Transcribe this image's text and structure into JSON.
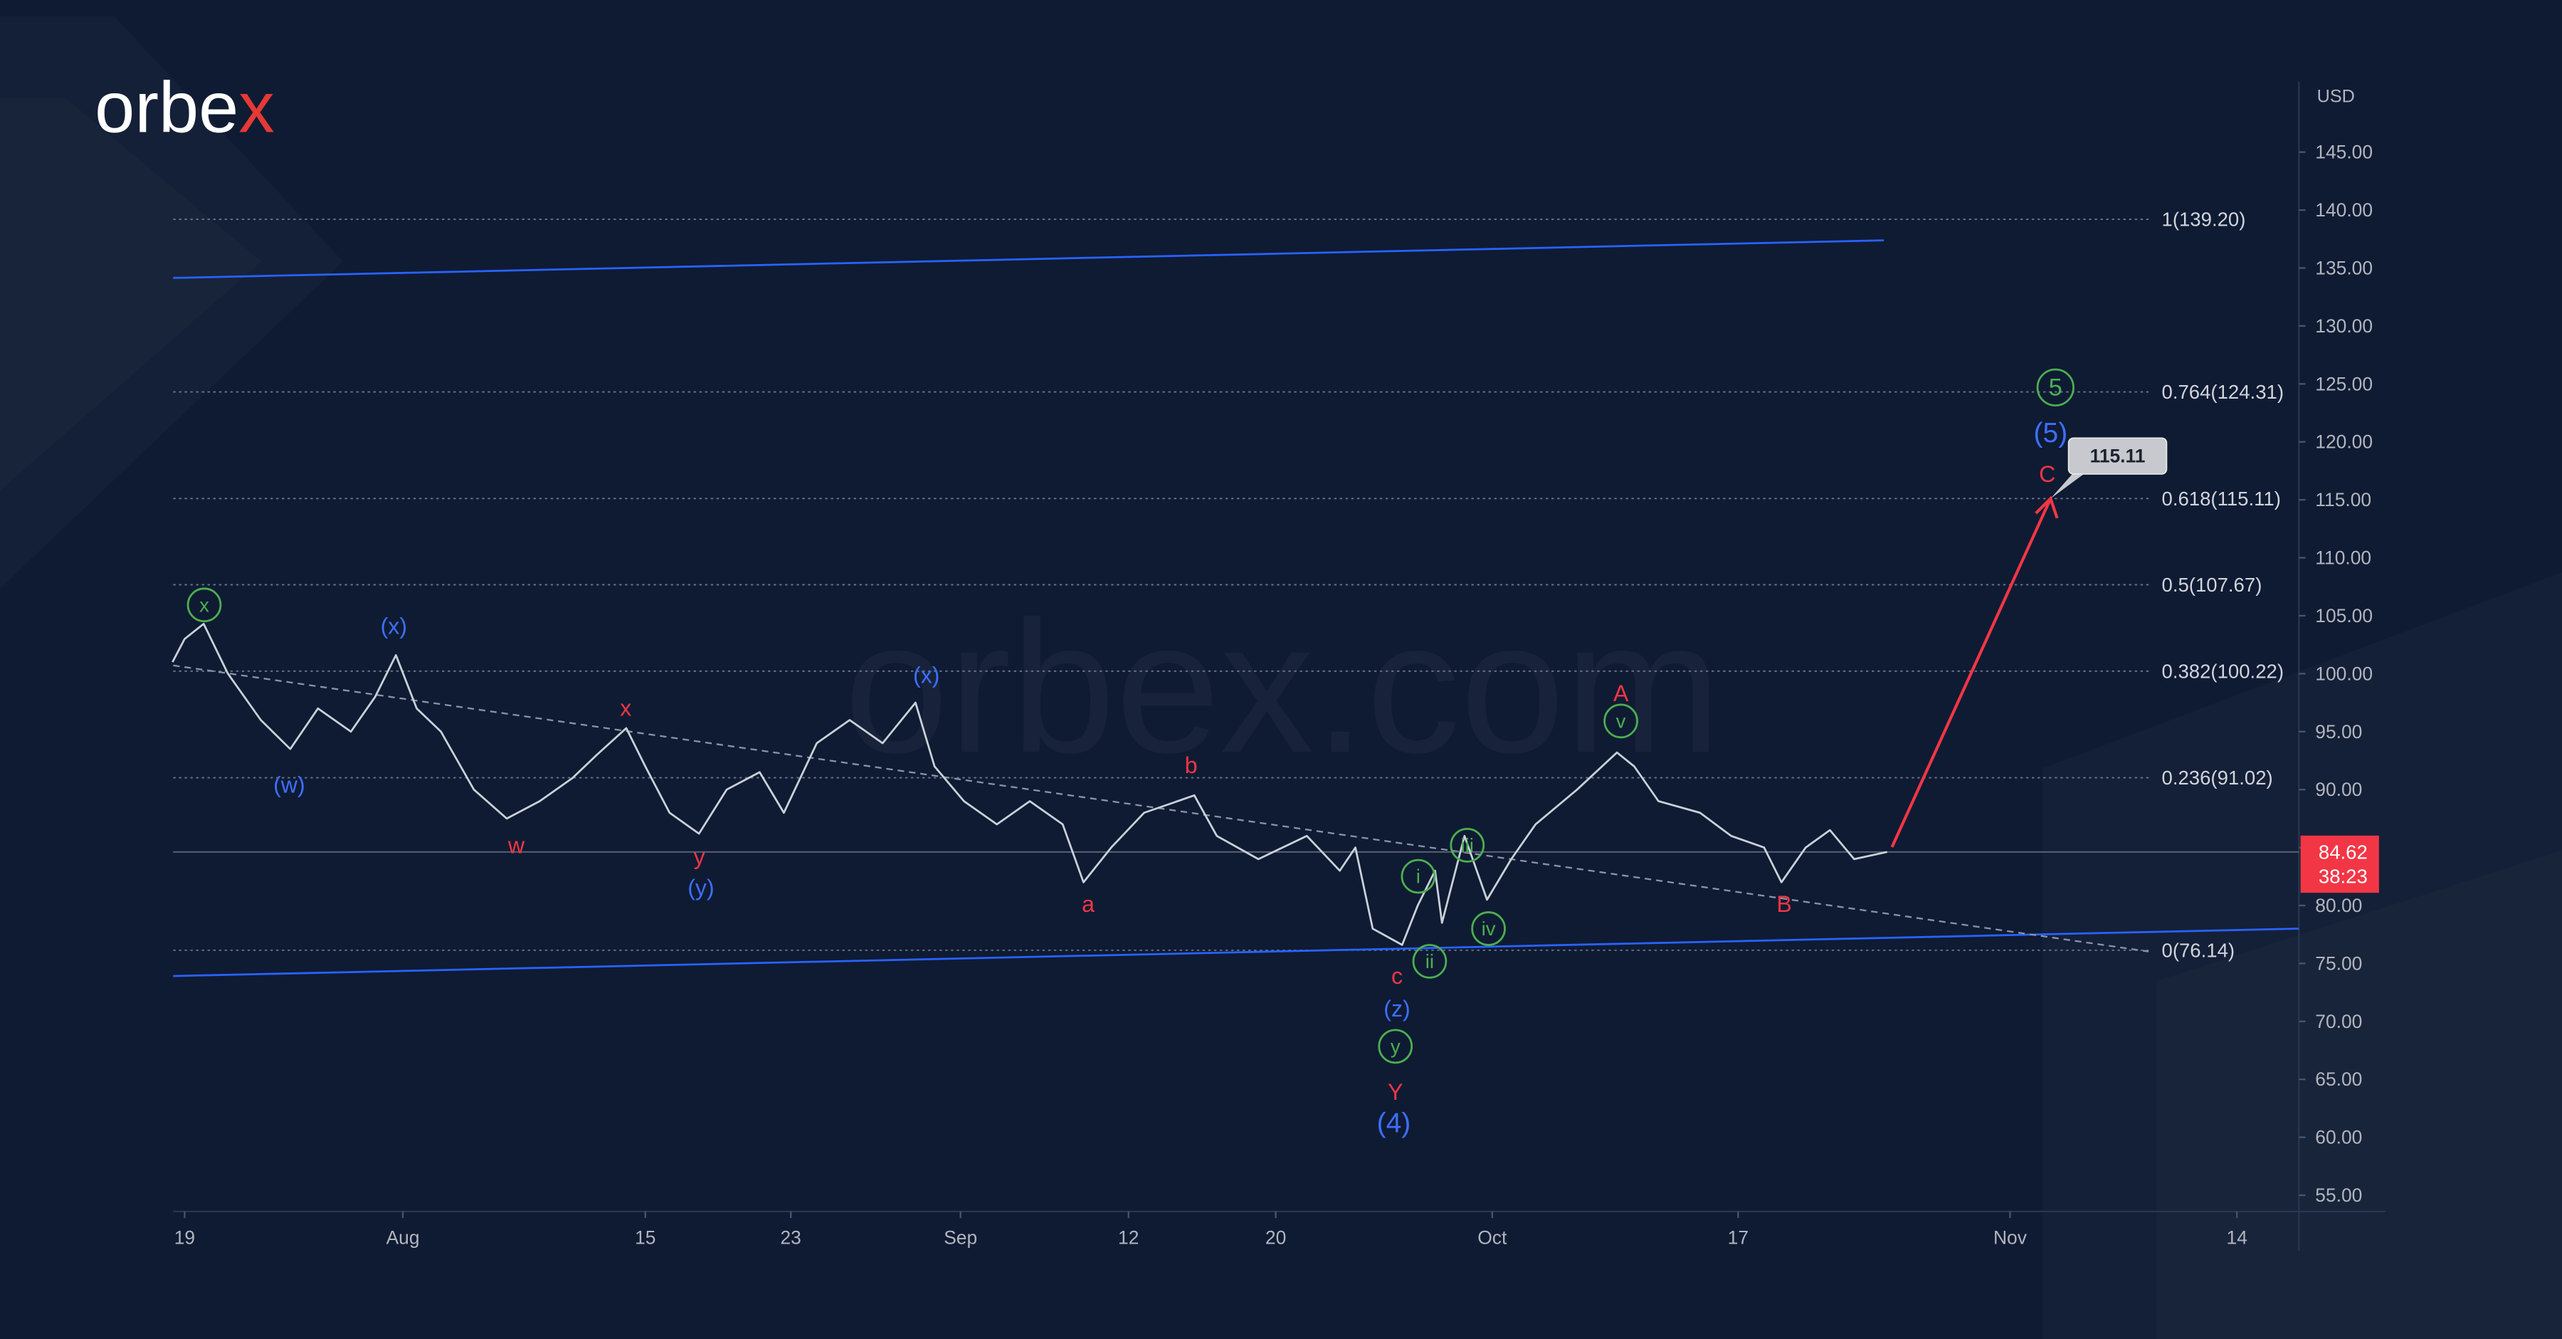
{
  "logo": "orbex",
  "watermark": "orbex.com",
  "chart_data": {
    "type": "line",
    "currency": "USD",
    "series": [
      {
        "color": "#c9d1d9",
        "x": [
          -0.7,
          0,
          1.1,
          2.5,
          4.4,
          6.1,
          7.7,
          9.6,
          11.0,
          12.2,
          13.4,
          14.8,
          16.7,
          18.6,
          20.5,
          22.4,
          23.8,
          25.5,
          26.6,
          28.0,
          29.7,
          31.3,
          33.2,
          34.6,
          36.5,
          38.4,
          40.3,
          42.2,
          43.3,
          45.0,
          46.9,
          48.8,
          50.7,
          51.9,
          53.5,
          55.4,
          58.3,
          59.6,
          62.0,
          64.8,
          66.7,
          67.6,
          68.6,
          70.3,
          71.2,
          72.2,
          72.6,
          73.9,
          75.2,
          76.6,
          78.0,
          80.4,
          82.7,
          83.7,
          85.1,
          87.5,
          89.3,
          91.2,
          92.2,
          93.6,
          95.0,
          96.4,
          98.3
        ],
        "values": [
          101,
          103,
          104.3,
          100,
          96,
          93.5,
          97,
          95,
          98,
          101.6,
          97,
          95,
          90,
          87.5,
          89,
          91,
          93,
          95.3,
          92,
          88,
          86.2,
          90,
          91.5,
          88,
          94,
          96,
          94,
          97.5,
          92,
          89,
          87,
          89,
          87,
          82,
          85,
          88,
          89.5,
          86,
          84,
          86,
          83,
          85,
          78,
          76.6,
          80,
          83,
          78.5,
          86,
          80.5,
          84,
          87,
          90,
          93.2,
          92,
          89,
          88,
          86,
          85,
          82,
          85,
          86.5,
          84,
          84.62
        ]
      }
    ],
    "xlim": [
      -0.66,
      122.08
    ],
    "xticks": [
      {
        "value": 0,
        "label": "19"
      },
      {
        "value": 12.6,
        "label": "Aug"
      },
      {
        "value": 26.6,
        "label": "15"
      },
      {
        "value": 35,
        "label": "23"
      },
      {
        "value": 44.8,
        "label": "Sep"
      },
      {
        "value": 54.5,
        "label": "12"
      },
      {
        "value": 63,
        "label": "20"
      },
      {
        "value": 75.5,
        "label": "Oct"
      },
      {
        "value": 89.7,
        "label": "17"
      },
      {
        "value": 105.4,
        "label": "Nov"
      },
      {
        "value": 118.5,
        "label": "14"
      }
    ],
    "ylim": [
      53.6,
      151.07
    ],
    "yticks": [
      {
        "value": 145,
        "label": "145.00"
      },
      {
        "value": 140,
        "label": "140.00"
      },
      {
        "value": 135,
        "label": "135.00"
      },
      {
        "value": 130,
        "label": "130.00"
      },
      {
        "value": 125,
        "label": "125.00"
      },
      {
        "value": 120,
        "label": "120.00"
      },
      {
        "value": 115,
        "label": "115.00"
      },
      {
        "value": 110,
        "label": "110.00"
      },
      {
        "value": 105,
        "label": "105.00"
      },
      {
        "value": 100,
        "label": "100.00"
      },
      {
        "value": 95,
        "label": "95.00"
      },
      {
        "value": 90,
        "label": "90.00"
      },
      {
        "value": 85,
        "label": "85.00"
      },
      {
        "value": 80,
        "label": "80.00"
      },
      {
        "value": 75,
        "label": "75.00"
      },
      {
        "value": 70,
        "label": "70.00"
      },
      {
        "value": 65,
        "label": "65.00"
      },
      {
        "value": 60,
        "label": "60.00"
      },
      {
        "value": 55,
        "label": "55.00"
      }
    ],
    "last_price": 84.62,
    "countdown": "38:23",
    "fib_levels": [
      {
        "label": "1(139.20)",
        "value": 139.2
      },
      {
        "label": "0.764(124.31)",
        "value": 124.31
      },
      {
        "label": "0.618(115.11)",
        "value": 115.11
      },
      {
        "label": "0.5(107.67)",
        "value": 107.67
      },
      {
        "label": "0.382(100.22)",
        "value": 100.22
      },
      {
        "label": "0.236(91.02)",
        "value": 91.02
      },
      {
        "label": "0(76.14)",
        "value": 76.14
      }
    ],
    "target": 115.11,
    "wave_labels": [
      {
        "color": "#4caf50",
        "circled": true,
        "texts": [
          "x",
          "5",
          "i",
          "ii",
          "iii",
          "iv",
          "v",
          "y"
        ]
      },
      {
        "color": "#3d6fff",
        "circled": false,
        "texts": [
          "(w)",
          "(x)",
          "(y)",
          "(x)",
          "(z)",
          "(4)",
          "(5)"
        ]
      },
      {
        "color": "#f23645",
        "circled": false,
        "texts": [
          "w",
          "x",
          "y",
          "a",
          "b",
          "c",
          "Y",
          "A",
          "B",
          "C"
        ]
      }
    ]
  }
}
